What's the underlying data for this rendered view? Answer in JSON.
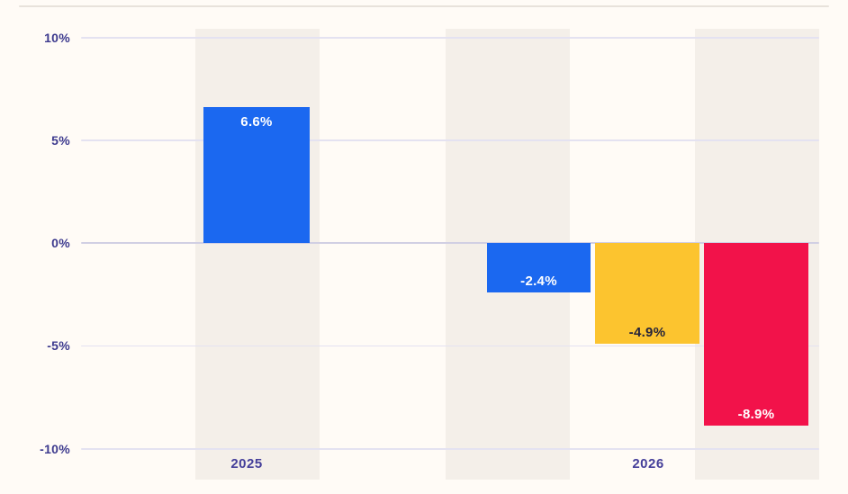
{
  "app": {
    "kind": "statistics-bar-chart-embed"
  },
  "colors": {
    "background": "#fffbf6",
    "column_band": "#f4efe9",
    "grid_line": "#e4e2f1",
    "zero_line": "#d1cfe3",
    "top_divider": "#e8e2db",
    "axis_tick_label": "#3d3a8e",
    "x_axis_label": "#443e99",
    "bar_blue": "#1b68f0",
    "bar_yellow": "#fcc42f",
    "bar_red": "#f2124a"
  },
  "chart_data": {
    "type": "bar",
    "title": "",
    "xlabel": "",
    "ylabel": "",
    "unit": "%",
    "grid": true,
    "legend_position": "none",
    "ylim": [
      -10,
      10
    ],
    "categories": [
      "2025",
      "2026"
    ],
    "yticks": [
      {
        "value": 10,
        "label": "10%"
      },
      {
        "value": 5,
        "label": "5%"
      },
      {
        "value": 0,
        "label": "0%"
      },
      {
        "value": -5,
        "label": "-5%"
      },
      {
        "value": -10,
        "label": "-10%"
      }
    ],
    "bars": [
      {
        "category": "2025",
        "value": 6.6,
        "label": "6.6%",
        "color": "#1b68f0",
        "label_color": "#ffffff"
      },
      {
        "category": "2026",
        "value": -2.4,
        "label": "-2.4%",
        "color": "#1b68f0",
        "label_color": "#ffffff"
      },
      {
        "category": "2026",
        "value": -4.9,
        "label": "-4.9%",
        "color": "#fcc42f",
        "label_color": "#26243a"
      },
      {
        "category": "2026",
        "value": -8.9,
        "label": "-8.9%",
        "color": "#f2124a",
        "label_color": "#ffffff"
      }
    ],
    "x_axis_labels": [
      "2025",
      "2026"
    ]
  }
}
